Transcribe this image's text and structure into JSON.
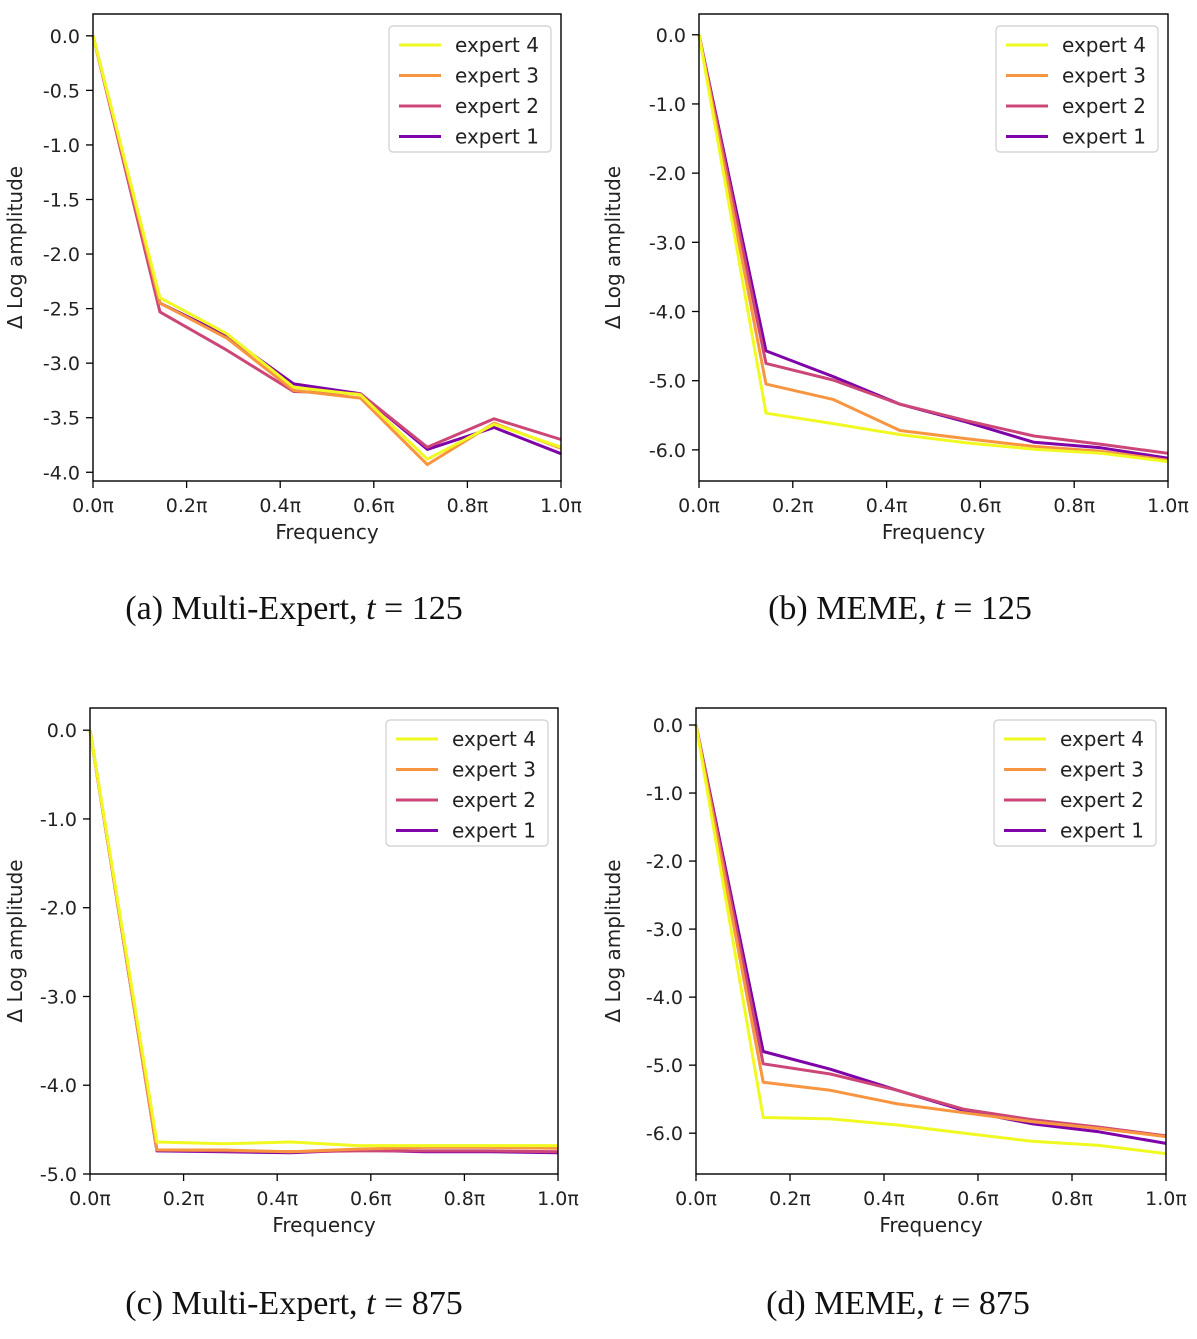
{
  "colors": {
    "expert 4": "#f0f921",
    "expert 3": "#f89540",
    "expert 2": "#cc4778",
    "expert 1": "#7e03a8"
  },
  "captions": [
    {
      "prefix": "(a) Multi-Expert, ",
      "var": "t",
      "eq": " = 125"
    },
    {
      "prefix": "(b) MEME, ",
      "var": "t",
      "eq": " = 125"
    },
    {
      "prefix": "(c) Multi-Expert, ",
      "var": "t",
      "eq": " = 875"
    },
    {
      "prefix": "(d) MEME, ",
      "var": "t",
      "eq": " = 875"
    }
  ],
  "chart_data": [
    {
      "type": "line",
      "xlabel": "Frequency",
      "ylabel": "Δ Log amplitude",
      "xlim": [
        0,
        1
      ],
      "ylim": [
        -4.08,
        0.2
      ],
      "xticks": [
        0,
        0.2,
        0.4,
        0.6,
        0.8,
        1.0
      ],
      "xtick_labels": [
        "0.0π",
        "0.2π",
        "0.4π",
        "0.6π",
        "0.8π",
        "1.0π"
      ],
      "yticks": [
        0,
        -0.5,
        -1.0,
        -1.5,
        -2.0,
        -2.5,
        -3.0,
        -3.5,
        -4.0
      ],
      "ytick_labels": [
        "0.0",
        "-0.5",
        "-1.0",
        "-1.5",
        "-2.0",
        "-2.5",
        "-3.0",
        "-3.5",
        "-4.0"
      ],
      "legend": "top-right",
      "x": [
        0,
        0.1429,
        0.2857,
        0.4286,
        0.5714,
        0.7143,
        0.8571,
        1.0
      ],
      "series": [
        {
          "name": "expert 4",
          "values": [
            0,
            -2.4,
            -2.73,
            -3.22,
            -3.29,
            -3.88,
            -3.56,
            -3.77
          ]
        },
        {
          "name": "expert 3",
          "values": [
            0,
            -2.45,
            -2.77,
            -3.25,
            -3.32,
            -3.93,
            -3.55,
            -3.78
          ]
        },
        {
          "name": "expert 2",
          "values": [
            0,
            -2.53,
            -2.88,
            -3.26,
            -3.28,
            -3.77,
            -3.51,
            -3.7
          ]
        },
        {
          "name": "expert 1",
          "values": [
            0,
            -2.45,
            -2.75,
            -3.19,
            -3.28,
            -3.79,
            -3.59,
            -3.83
          ]
        }
      ]
    },
    {
      "type": "line",
      "xlabel": "Frequency",
      "ylabel": "Δ Log amplitude",
      "xlim": [
        0,
        1
      ],
      "ylim": [
        -6.45,
        0.3
      ],
      "xticks": [
        0,
        0.2,
        0.4,
        0.6,
        0.8,
        1.0
      ],
      "xtick_labels": [
        "0.0π",
        "0.2π",
        "0.4π",
        "0.6π",
        "0.8π",
        "1.0π"
      ],
      "yticks": [
        0,
        -1,
        -2,
        -3,
        -4,
        -5,
        -6
      ],
      "ytick_labels": [
        "0.0",
        "-1.0",
        "-2.0",
        "-3.0",
        "-4.0",
        "-5.0",
        "-6.0"
      ],
      "legend": "top-right",
      "x": [
        0,
        0.1429,
        0.2857,
        0.4286,
        0.5714,
        0.7143,
        0.8571,
        1.0
      ],
      "series": [
        {
          "name": "expert 4",
          "values": [
            0,
            -5.47,
            -5.62,
            -5.78,
            -5.9,
            -5.99,
            -6.05,
            -6.17
          ]
        },
        {
          "name": "expert 3",
          "values": [
            0,
            -5.05,
            -5.27,
            -5.72,
            -5.84,
            -5.95,
            -6.02,
            -6.15
          ]
        },
        {
          "name": "expert 2",
          "values": [
            0,
            -4.75,
            -4.99,
            -5.34,
            -5.58,
            -5.8,
            -5.92,
            -6.05
          ]
        },
        {
          "name": "expert 1",
          "values": [
            0,
            -4.57,
            -4.94,
            -5.34,
            -5.6,
            -5.89,
            -5.97,
            -6.12
          ]
        }
      ]
    },
    {
      "type": "line",
      "xlabel": "Frequency",
      "ylabel": "Δ Log amplitude",
      "xlim": [
        0,
        1
      ],
      "ylim": [
        -5.0,
        0.25
      ],
      "xticks": [
        0,
        0.2,
        0.4,
        0.6,
        0.8,
        1.0
      ],
      "xtick_labels": [
        "0.0π",
        "0.2π",
        "0.4π",
        "0.6π",
        "0.8π",
        "1.0π"
      ],
      "yticks": [
        0,
        -1,
        -2,
        -3,
        -4,
        -5
      ],
      "ytick_labels": [
        "0.0",
        "-1.0",
        "-2.0",
        "-3.0",
        "-4.0",
        "-5.0"
      ],
      "legend": "top-right",
      "x": [
        0,
        0.1429,
        0.2857,
        0.4286,
        0.5714,
        0.7143,
        0.8571,
        1.0
      ],
      "series": [
        {
          "name": "expert 4",
          "values": [
            0,
            -4.64,
            -4.66,
            -4.64,
            -4.68,
            -4.68,
            -4.68,
            -4.68
          ]
        },
        {
          "name": "expert 3",
          "values": [
            0,
            -4.73,
            -4.73,
            -4.75,
            -4.72,
            -4.7,
            -4.7,
            -4.71
          ]
        },
        {
          "name": "expert 2",
          "values": [
            0,
            -4.73,
            -4.74,
            -4.75,
            -4.74,
            -4.74,
            -4.74,
            -4.75
          ]
        },
        {
          "name": "expert 1",
          "values": [
            0,
            -4.74,
            -4.75,
            -4.76,
            -4.73,
            -4.75,
            -4.75,
            -4.76
          ]
        }
      ]
    },
    {
      "type": "line",
      "xlabel": "Frequency",
      "ylabel": "Δ Log amplitude",
      "xlim": [
        0,
        1
      ],
      "ylim": [
        -6.6,
        0.25
      ],
      "xticks": [
        0,
        0.2,
        0.4,
        0.6,
        0.8,
        1.0
      ],
      "xtick_labels": [
        "0.0π",
        "0.2π",
        "0.4π",
        "0.6π",
        "0.8π",
        "1.0π"
      ],
      "yticks": [
        0,
        -1,
        -2,
        -3,
        -4,
        -5,
        -6
      ],
      "ytick_labels": [
        "0.0",
        "-1.0",
        "-2.0",
        "-3.0",
        "-4.0",
        "-5.0",
        "-6.0"
      ],
      "legend": "top-right",
      "x": [
        0,
        0.1429,
        0.2857,
        0.4286,
        0.5714,
        0.7143,
        0.8571,
        1.0
      ],
      "series": [
        {
          "name": "expert 4",
          "values": [
            0,
            -5.77,
            -5.79,
            -5.88,
            -6.0,
            -6.12,
            -6.18,
            -6.3
          ]
        },
        {
          "name": "expert 3",
          "values": [
            0,
            -5.25,
            -5.37,
            -5.57,
            -5.7,
            -5.83,
            -5.93,
            -6.05
          ]
        },
        {
          "name": "expert 2",
          "values": [
            0,
            -4.98,
            -5.13,
            -5.37,
            -5.65,
            -5.8,
            -5.91,
            -6.04
          ]
        },
        {
          "name": "expert 1",
          "values": [
            0,
            -4.8,
            -5.06,
            -5.37,
            -5.67,
            -5.86,
            -5.98,
            -6.15
          ]
        }
      ]
    }
  ]
}
